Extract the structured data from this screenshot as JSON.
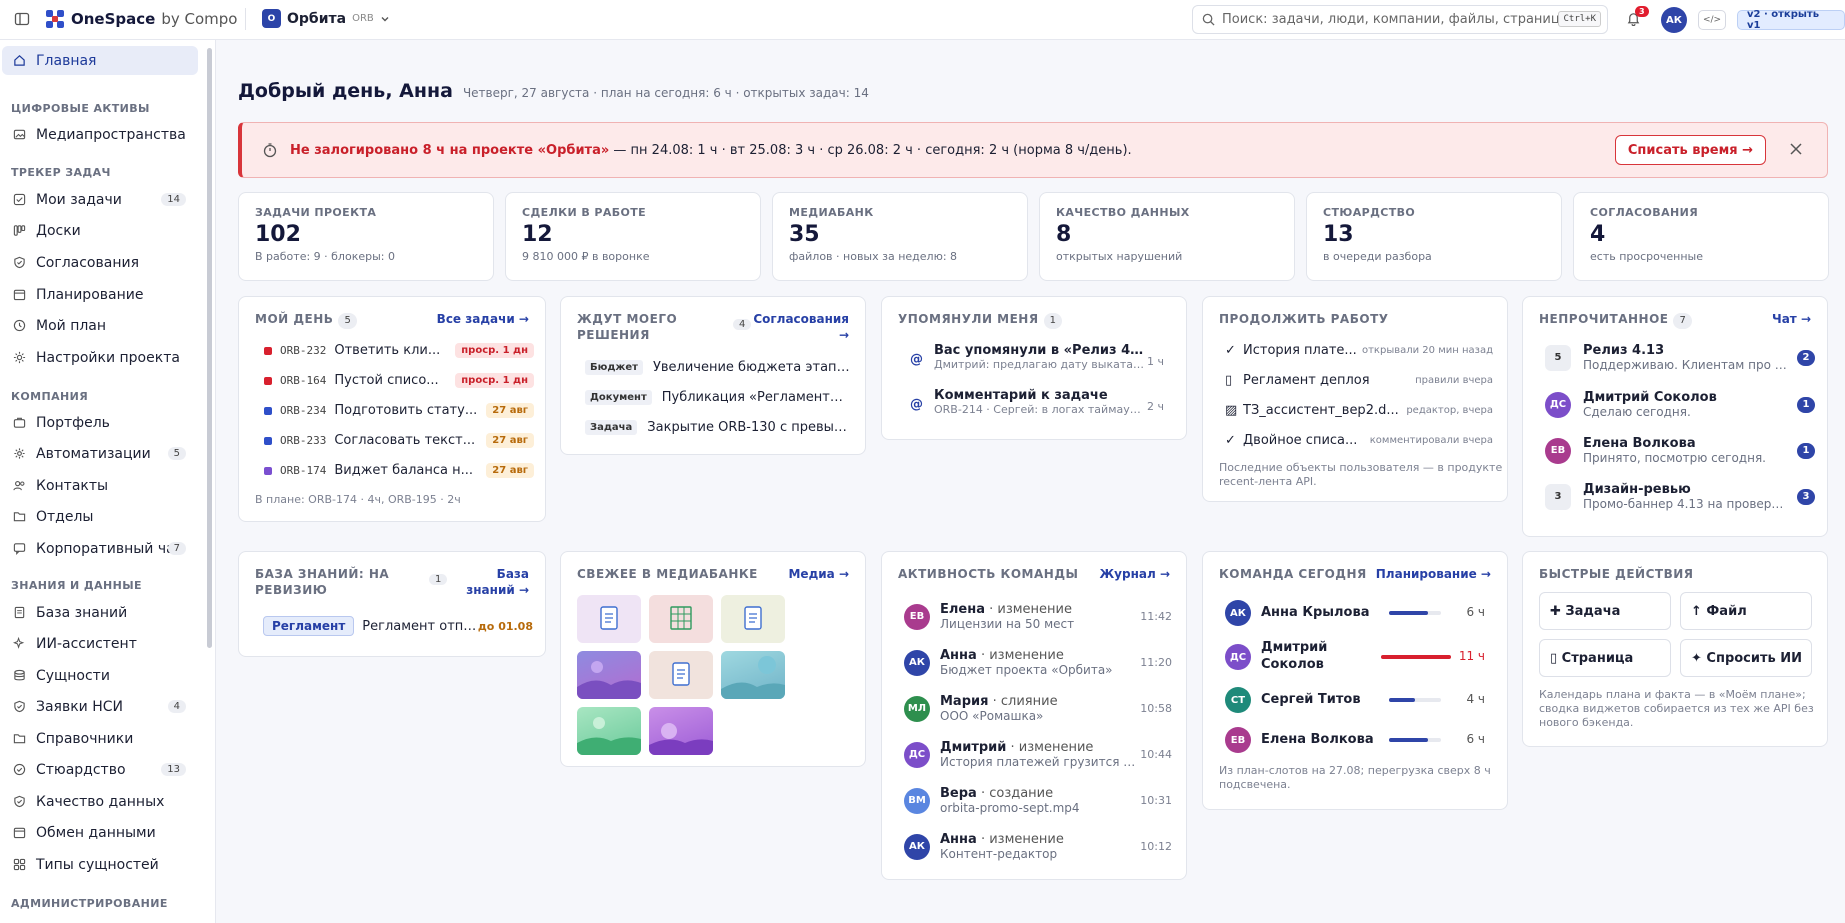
{
  "topbar": {
    "brand": "OneSpace",
    "brand_suffix": "by Compo",
    "project_initial": "О",
    "project_name": "Орбита",
    "project_code": "ORB",
    "search_placeholder": "Поиск: задачи, люди, компании, файлы, страниц",
    "shortcut": "Ctrl+K",
    "notif_count": "3",
    "avatar": "АК",
    "code_btn": "</>",
    "version": "v2 · открыть v1"
  },
  "sidebar": {
    "main": "Главная",
    "s1": "ЦИФРОВЫЕ АКТИВЫ",
    "media": "Медиапространства",
    "s2": "ТРЕКЕР ЗАДАЧ",
    "my_tasks": "Мои задачи",
    "my_tasks_ct": "14",
    "boards": "Доски",
    "approvals": "Согласования",
    "planning": "Планирование",
    "my_plan": "Мой план",
    "proj_settings": "Настройки проекта",
    "s3": "КОМПАНИЯ",
    "portfolio": "Портфель",
    "automations": "Автоматизации",
    "automations_ct": "5",
    "contacts": "Контакты",
    "departments": "Отделы",
    "chat": "Корпоративный чат",
    "chat_ct": "7",
    "s4": "ЗНАНИЯ И ДАННЫЕ",
    "kb": "База знаний",
    "ai": "ИИ-ассистент",
    "entities": "Сущности",
    "nsi": "Заявки НСИ",
    "nsi_ct": "4",
    "refs": "Справочники",
    "steward": "Стюардство",
    "steward_ct": "13",
    "dq": "Качество данных",
    "exchange": "Обмен данными",
    "types": "Типы сущностей",
    "s5": "АДМИНИСТРИРОВАНИЕ"
  },
  "greeting": {
    "title": "Добрый день, Анна",
    "sub": "Четверг, 27 августа · план на сегодня: 6 ч · открытых задач: 14"
  },
  "alert": {
    "bold": "Не залогировано 8 ч на проекте «Орбита»",
    "text": "— пн 24.08: 1 ч · вт 25.08: 3 ч · ср 26.08: 2 ч · сегодня: 2 ч (норма 8 ч/день).",
    "button": "Списать время →"
  },
  "kpis": [
    {
      "label": "ЗАДАЧИ ПРОЕКТА",
      "value": "102",
      "sub": "В работе: 9 · блокеры: 0"
    },
    {
      "label": "СДЕЛКИ В РАБОТЕ",
      "value": "12",
      "sub": "9 810 000 ₽ в воронке"
    },
    {
      "label": "МЕДИАБАНК",
      "value": "35",
      "sub": "файлов · новых за неделю: 8"
    },
    {
      "label": "КАЧЕСТВО ДАННЫХ",
      "value": "8",
      "sub": "открытых нарушений"
    },
    {
      "label": "СТЮАРДСТВО",
      "value": "13",
      "sub": "в очереди разбора"
    },
    {
      "label": "СОГЛАСОВАНИЯ",
      "value": "4",
      "sub": "есть просроченные"
    }
  ],
  "myday": {
    "title": "МОЙ ДЕНЬ",
    "count": "5",
    "link": "Все задачи →",
    "items": [
      {
        "code": "ORB-232",
        "text": "Ответить кли...",
        "tag": "проср. 1 дн",
        "color": "#d8202e",
        "kind": "red"
      },
      {
        "code": "ORB-164",
        "text": "Пустой списо...",
        "tag": "проср. 1 дн",
        "color": "#d8202e",
        "kind": "red"
      },
      {
        "code": "ORB-234",
        "text": "Подготовить стату...",
        "tag": "27 авг",
        "color": "#2f4fc9",
        "kind": "org"
      },
      {
        "code": "ORB-233",
        "text": "Согласовать текст...",
        "tag": "27 авг",
        "color": "#2f4fc9",
        "kind": "org"
      },
      {
        "code": "ORB-174",
        "text": "Виджет баланса н...",
        "tag": "27 авг",
        "color": "#7a4fd0",
        "kind": "org"
      }
    ],
    "foot": "В плане: ORB-174 · 4ч, ORB-195 · 2ч"
  },
  "waiting": {
    "title1": "ЖДУТ МОЕГО",
    "title2": "РЕШЕНИЯ",
    "count": "4",
    "link1": "Согласования",
    "link2": "→",
    "items": [
      {
        "tag": "Бюджет",
        "text": "Увеличение бюджета этапа «..."
      },
      {
        "tag": "Документ",
        "text": "Публикация «Регламента о..."
      },
      {
        "tag": "Задача",
        "text": "Закрытие ORB-130 с превыше..."
      }
    ]
  },
  "mentions": {
    "title": "УПОМЯНУЛИ МЕНЯ",
    "count": "1",
    "items": [
      {
        "title": "Вас упомянули в «Релиз 4.13»",
        "sub": "Дмитрий: предлагаю дату выката с...",
        "time": "1 ч"
      },
      {
        "title": "Комментарий к задаче",
        "sub": "ORB-214 · Сергей: в логах таймаут о...",
        "time": "2 ч"
      }
    ]
  },
  "continue": {
    "title": "ПРОДОЛЖИТЬ РАБОТУ",
    "items": [
      {
        "icon": "✓",
        "text": "История плате...",
        "meta": "открывали 20 мин назад"
      },
      {
        "icon": "▯",
        "text": "Регламент деплоя",
        "meta": "правили вчера"
      },
      {
        "icon": "▨",
        "text": "ТЗ_ассистент_вер2.d...",
        "meta": "редактор, вчера"
      },
      {
        "icon": "✓",
        "text": "Двойное списа...",
        "meta": "комментировали вчера"
      }
    ],
    "foot1": "Последние объекты пользователя — в продукте",
    "foot2": "recent-лента API."
  },
  "unread": {
    "title": "НЕПРОЧИТАННОЕ",
    "count": "7",
    "link": "Чат →",
    "items": [
      {
        "av": "5",
        "name": "Релиз 4.13",
        "sub": "Поддерживаю. Клиентам про с...",
        "n": "2",
        "bg": "#eceef3",
        "fg": "#333"
      },
      {
        "av": "ДС",
        "name": "Дмитрий Соколов",
        "sub": "Сделаю сегодня.",
        "n": "1",
        "bg": "#7c4ec9",
        "fg": "#fff"
      },
      {
        "av": "ЕВ",
        "name": "Елена Волкова",
        "sub": "Принято, посмотрю сегодня.",
        "n": "1",
        "bg": "#a93b8e",
        "fg": "#fff"
      },
      {
        "av": "3",
        "name": "Дизайн-ревью",
        "sub": "Промо-баннер 4.13 на проверк...",
        "n": "3",
        "bg": "#eceef3",
        "fg": "#333"
      }
    ]
  },
  "kbrev": {
    "title1": "БАЗА ЗНАНИЙ: НА",
    "title2": "РЕВИЗИЮ",
    "count": "1",
    "link1": "База",
    "link2": "знаний →",
    "tag": "Регламент",
    "text": "Регламент отпу...",
    "due": "до 01.08"
  },
  "mediafresh": {
    "title": "СВЕЖЕЕ В МЕДИАБАНКЕ",
    "link": "Медиа →"
  },
  "activity": {
    "title": "АКТИВНОСТЬ КОМАНДЫ",
    "link": "Журнал →",
    "items": [
      {
        "av": "ЕВ",
        "bg": "#a93b8e",
        "name": "Елена",
        "act": "· изменение",
        "sub": "Лицензии на 50 мест",
        "time": "11:42"
      },
      {
        "av": "АК",
        "bg": "#2f45a8",
        "name": "Анна",
        "act": "· изменение",
        "sub": "Бюджет проекта «Орбита»",
        "time": "11:20"
      },
      {
        "av": "МЛ",
        "bg": "#2e8f4e",
        "name": "Мария",
        "act": "· слияние",
        "sub": "ООО «Ромашка»",
        "time": "10:58"
      },
      {
        "av": "ДС",
        "bg": "#7c4ec9",
        "name": "Дмитрий",
        "act": "· изменение",
        "sub": "История платежей грузится до...",
        "time": "10:44"
      },
      {
        "av": "ВМ",
        "bg": "#5a86e0",
        "name": "Вера",
        "act": "· создание",
        "sub": "orbita-promo-sept.mp4",
        "time": "10:31"
      },
      {
        "av": "АК",
        "bg": "#2f45a8",
        "name": "Анна",
        "act": "· изменение",
        "sub": "Контент-редактор",
        "time": "10:12"
      }
    ]
  },
  "team": {
    "title": "КОМАНДА СЕГОДНЯ",
    "link": "Планирование →",
    "items": [
      {
        "av": "АК",
        "bg": "#2f45a8",
        "name": "Анна Крылова",
        "hours": "6 ч",
        "load": 0.75,
        "over": false
      },
      {
        "av": "ДС",
        "bg": "#7c4ec9",
        "name": "Дмитрий Соколов",
        "hours": "11 ч",
        "load": 1.0,
        "over": true
      },
      {
        "av": "СТ",
        "bg": "#1f8a7a",
        "name": "Сергей Титов",
        "hours": "4 ч",
        "load": 0.5,
        "over": false
      },
      {
        "av": "ЕВ",
        "bg": "#a93b8e",
        "name": "Елена Волкова",
        "hours": "6 ч",
        "load": 0.75,
        "over": false
      }
    ],
    "foot1": "Из план-слотов на 27.08; перегрузка сверх 8 ч",
    "foot2": "подсвечена."
  },
  "quick": {
    "title": "БЫСТРЫЕ ДЕЙСТВИЯ",
    "task": "✚ Задача",
    "file": "↑ Файл",
    "page": "▯ Страница",
    "ai": "✦ Спросить ИИ",
    "foot1": "Календарь плана и факта — в «Моём плане»;",
    "foot2": "сводка виджетов собирается из тех же API без",
    "foot3": "нового бэкенда."
  }
}
